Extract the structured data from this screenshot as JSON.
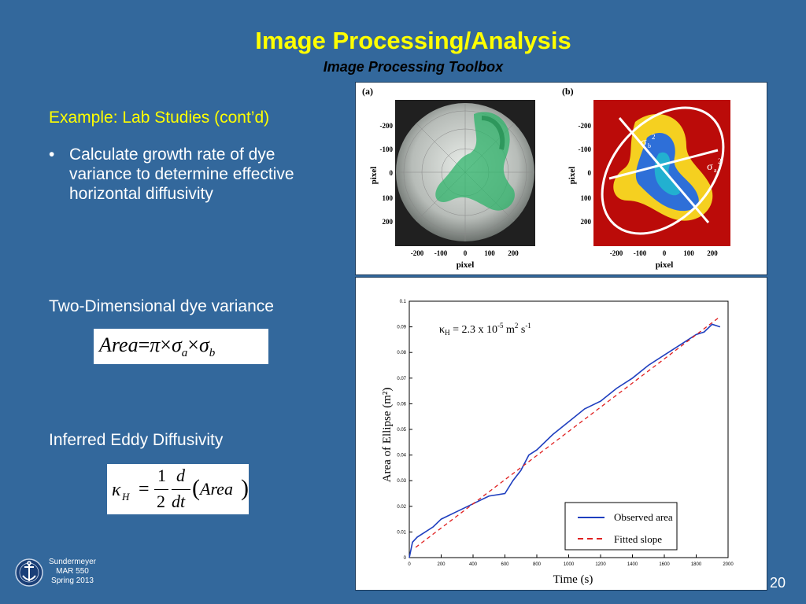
{
  "slide": {
    "title": "Image Processing/Analysis",
    "subtitle": "Image Processing Toolbox",
    "example_heading": "Example: Lab Studies (cont’d)",
    "bullet_symbol": "•",
    "bullet_text": "Calculate growth rate of dye variance to determine effective horizontal diffusivity",
    "section_variance": "Two-Dimensional dye variance",
    "section_diffusivity": "Inferred Eddy Diffusivity",
    "page_number": "20"
  },
  "equations": {
    "area": {
      "lhs": "Area",
      "eq": "=",
      "pi": "π",
      "times": "×",
      "sigma": "σ",
      "sub_a": "a",
      "sub_b": "b"
    },
    "kappa": {
      "kappa": "κ",
      "sub": "H",
      "eq": "=",
      "num": "1",
      "den": "2",
      "dnum": "d",
      "dden": "dt",
      "arg": "Area"
    }
  },
  "footer": {
    "line1": "Sundermeyer",
    "line2": "MAR 550",
    "line3": "Spring 2013",
    "logo_icon": "anchor-seal-icon"
  },
  "figure_top": {
    "panel_a_label": "(a)",
    "panel_b_label": "(b)",
    "ylabel": "pixel",
    "xlabel": "pixel",
    "yticks": [
      "-200",
      "-100",
      "0",
      "100",
      "200"
    ],
    "xticks": [
      "-200",
      "-100",
      "0",
      "100",
      "200"
    ],
    "sigma_b": "σ",
    "sigma_b_sub": "b",
    "sigma_b_sup": "2",
    "sigma_a": "σ",
    "sigma_a_sub": "a",
    "sigma_a_sup": "2"
  },
  "chart_data": {
    "type": "line",
    "xlabel": "Time (s)",
    "ylabel": "Area of Ellipse (m²)",
    "xlim": [
      0,
      2000
    ],
    "ylim": [
      0,
      0.1
    ],
    "xticks": [
      "0",
      "200",
      "400",
      "600",
      "800",
      "1000",
      "1200",
      "1400",
      "1600",
      "1800",
      "2000"
    ],
    "yticks": [
      "0",
      "0.01",
      "0.02",
      "0.03",
      "0.04",
      "0.05",
      "0.06",
      "0.07",
      "0.08",
      "0.09",
      "0.1"
    ],
    "annotation": {
      "kappa": "κ",
      "sub": "H",
      "text1": " = 2.3 x 10",
      "exp1": "-5",
      "text2": " m",
      "exp2": "2",
      "text3": " s",
      "exp3": "-1"
    },
    "legend_position": "bottom-right",
    "series": [
      {
        "name": "Observed area",
        "color": "#1f3fbf",
        "style": "solid",
        "x": [
          0,
          20,
          50,
          100,
          150,
          200,
          300,
          400,
          500,
          600,
          650,
          700,
          750,
          800,
          900,
          1000,
          1100,
          1200,
          1300,
          1400,
          1500,
          1600,
          1700,
          1800,
          1850,
          1900,
          1950
        ],
        "y": [
          0,
          0.006,
          0.008,
          0.01,
          0.012,
          0.015,
          0.018,
          0.021,
          0.024,
          0.025,
          0.03,
          0.034,
          0.04,
          0.042,
          0.048,
          0.053,
          0.058,
          0.061,
          0.066,
          0.07,
          0.075,
          0.079,
          0.083,
          0.087,
          0.088,
          0.091,
          0.09
        ]
      },
      {
        "name": "Fitted slope",
        "color": "#e02020",
        "style": "dashed",
        "x": [
          40,
          1950
        ],
        "y": [
          0.004,
          0.094
        ]
      }
    ]
  }
}
